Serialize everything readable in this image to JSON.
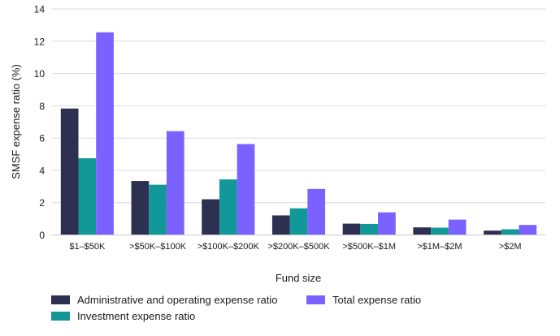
{
  "chart_data": {
    "type": "bar",
    "title": "",
    "xlabel": "Fund size",
    "ylabel": "SMSF expense ratio (%)",
    "ylim": [
      0,
      14
    ],
    "yticks": [
      0,
      2,
      4,
      6,
      8,
      10,
      12,
      14
    ],
    "grid": true,
    "legend_position": "bottom-left",
    "categories": [
      "$1–$50K",
      ">$50K–$100K",
      ">$100K–$200K",
      ">$200K–$500K",
      ">$500K–$1M",
      ">$1M–$2M",
      ">$2M"
    ],
    "series": [
      {
        "name": "Administrative and operating expense ratio",
        "color": "#2e3052",
        "values": [
          7.83,
          3.34,
          2.21,
          1.21,
          0.7,
          0.47,
          0.27
        ]
      },
      {
        "name": "Investment expense ratio",
        "color": "#13989a",
        "values": [
          4.75,
          3.11,
          3.44,
          1.65,
          0.68,
          0.45,
          0.35
        ]
      },
      {
        "name": "Total expense ratio",
        "color": "#7b61ff",
        "values": [
          12.55,
          6.43,
          5.63,
          2.85,
          1.4,
          0.95,
          0.62
        ]
      }
    ]
  },
  "legend": {
    "items": [
      {
        "label": "Administrative and operating expense ratio",
        "color": "#2e3052"
      },
      {
        "label": "Investment expense ratio",
        "color": "#13989a"
      },
      {
        "label": "Total expense ratio",
        "color": "#7b61ff"
      }
    ]
  }
}
